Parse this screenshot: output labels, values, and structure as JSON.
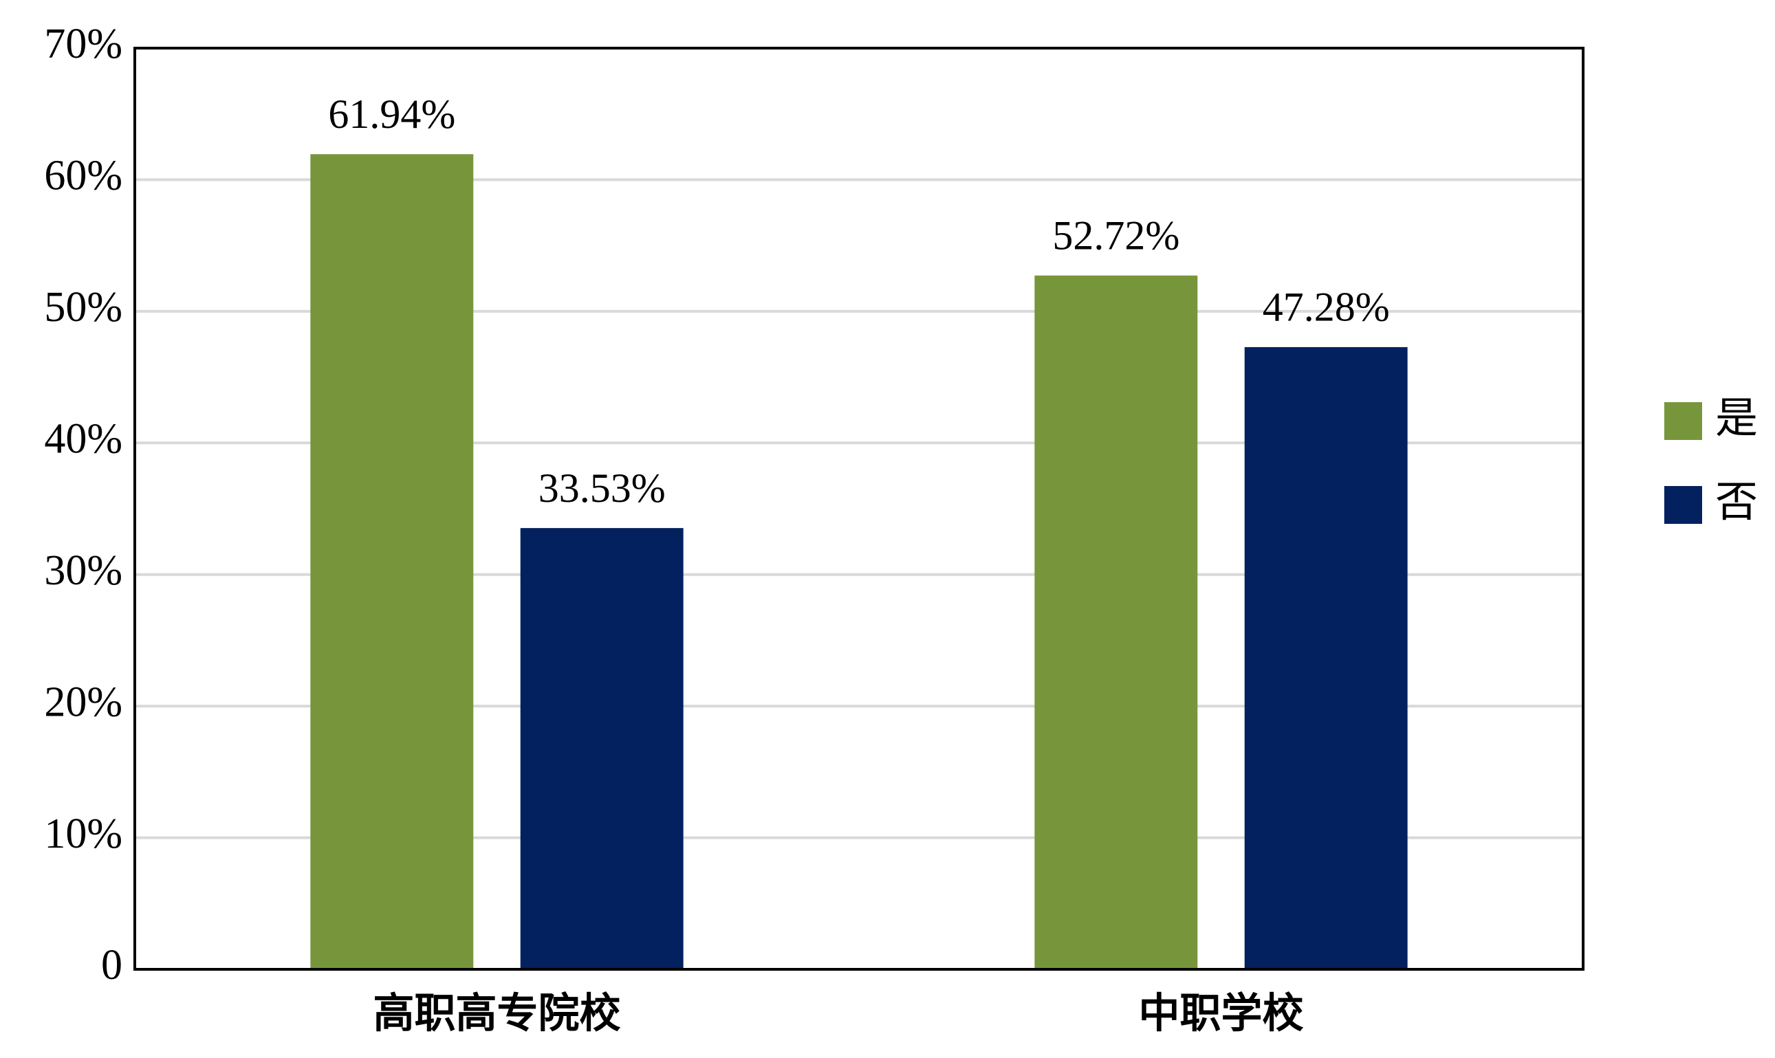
{
  "chart_data": {
    "type": "bar",
    "categories": [
      "高职高专院校",
      "中职学校"
    ],
    "series": [
      {
        "name": "是",
        "color": "#77963b",
        "values": [
          61.94,
          52.72
        ],
        "value_labels": [
          "61.94%",
          "52.72%"
        ]
      },
      {
        "name": "否",
        "color": "#03215e",
        "values": [
          33.53,
          47.28
        ],
        "value_labels": [
          "33.53%",
          "47.28%"
        ]
      }
    ],
    "ylim": [
      0,
      70
    ],
    "yticks": [
      0,
      {
        "value": 10,
        "label": "10%"
      },
      {
        "value": 20,
        "label": "20%"
      },
      {
        "value": 30,
        "label": "30%"
      },
      {
        "value": 40,
        "label": "40%"
      },
      {
        "value": 50,
        "label": "50%"
      },
      {
        "value": 60,
        "label": "60%"
      },
      {
        "value": 70,
        "label": "70%"
      }
    ],
    "grid": true,
    "legend": "right"
  }
}
